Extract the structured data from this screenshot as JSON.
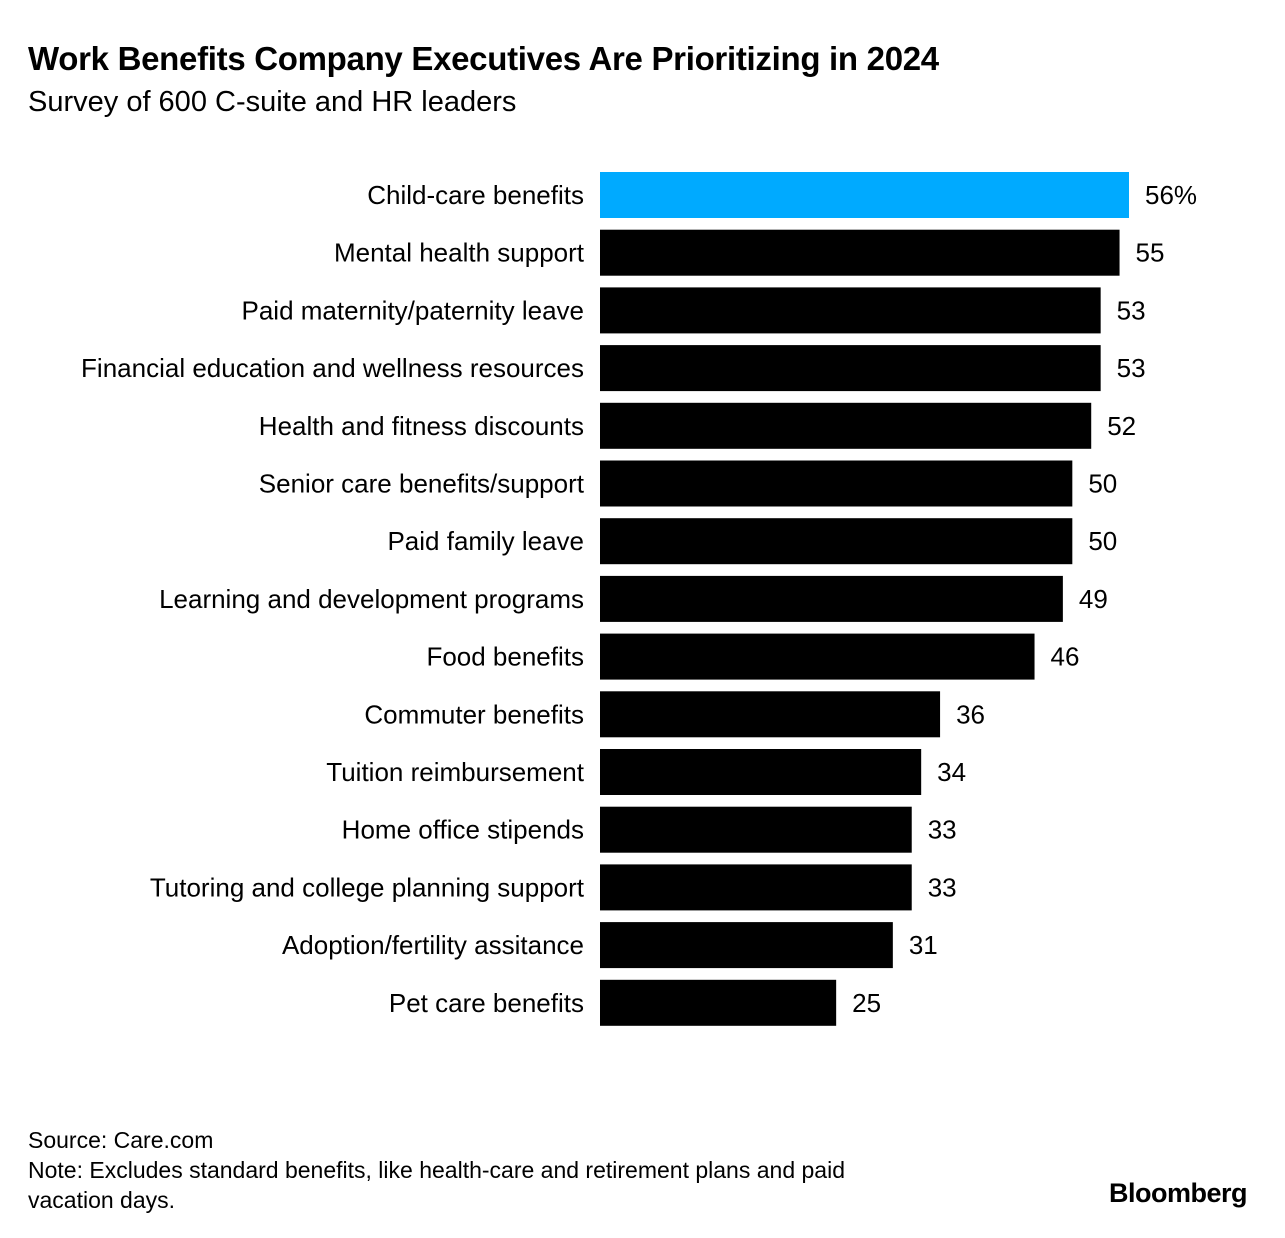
{
  "chart_data": {
    "type": "bar",
    "orientation": "horizontal",
    "title": "Work Benefits Company Executives Are Prioritizing in 2024",
    "subtitle": "Survey of 600 C-suite and HR leaders",
    "unit_suffix_first": "%",
    "categories": [
      "Child-care benefits",
      "Mental health support",
      "Paid maternity/paternity leave",
      "Financial education and wellness resources",
      "Health and fitness discounts",
      "Senior care benefits/support",
      "Paid family leave",
      "Learning and development programs",
      "Food benefits",
      "Commuter benefits",
      "Tuition reimbursement",
      "Home office stipends",
      "Tutoring and college planning support",
      "Adoption/fertility assitance",
      "Pet care benefits"
    ],
    "values": [
      56,
      55,
      53,
      53,
      52,
      50,
      50,
      49,
      46,
      36,
      34,
      33,
      33,
      31,
      25
    ],
    "highlight_index": 0,
    "colors": {
      "highlight": "#00aaff",
      "default": "#000000"
    },
    "xlim": [
      0,
      56
    ],
    "grid": false
  },
  "footer": {
    "source": "Source: Care.com",
    "note": "Note: Excludes standard benefits, like health-care and retirement plans and paid vacation days.",
    "note_line1": "Note: Excludes standard benefits, like health-care and retirement plans and paid",
    "note_line2": "vacation days.",
    "logo": "Bloomberg"
  }
}
